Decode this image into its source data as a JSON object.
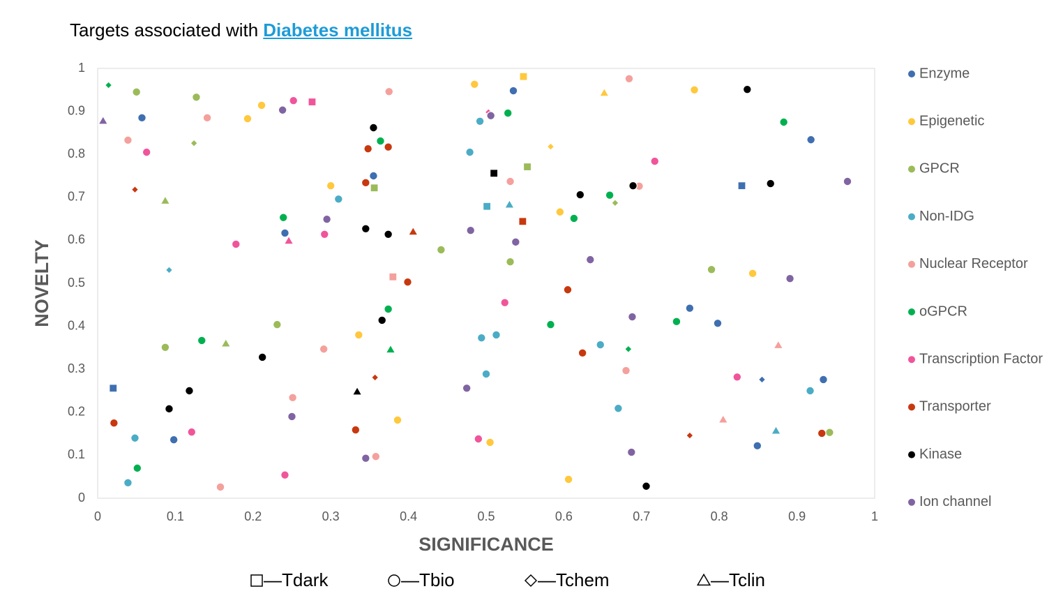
{
  "chart_data": {
    "type": "scatter",
    "title": "Targets associated with",
    "title_link": "Diabetes mellitus",
    "x_label": "SIGNIFICANCE",
    "y_label": "NOVELTY",
    "xlim": [
      0,
      1
    ],
    "ylim": [
      0,
      1
    ],
    "xticks": [
      0,
      0.1,
      0.2,
      0.3,
      0.4,
      0.5,
      0.6,
      0.7,
      0.8,
      0.9,
      1
    ],
    "yticks": [
      0,
      0.1,
      0.2,
      0.3,
      0.4,
      0.5,
      0.6,
      0.7,
      0.8,
      0.9,
      1
    ],
    "grid": false,
    "legend": "right",
    "series": [
      {
        "name": "Enzyme",
        "color": "#3f6fb0",
        "x": [
          0.057,
          0.535,
          0.355,
          0.241,
          0.918,
          0.829,
          0.762,
          0.798,
          0.02,
          0.098,
          0.855,
          0.934,
          0.849
        ],
        "y": [
          0.885,
          0.948,
          0.75,
          0.617,
          0.834,
          0.727,
          0.442,
          0.407,
          0.256,
          0.136,
          0.276,
          0.276,
          0.122
        ],
        "shapes": [
          "circle",
          "circle",
          "circle",
          "circle",
          "circle",
          "square",
          "circle",
          "circle",
          "square",
          "circle",
          "diamond",
          "circle",
          "circle"
        ]
      },
      {
        "name": "Epigenetic",
        "color": "#ffc83d",
        "x": [
          0.485,
          0.548,
          0.211,
          0.193,
          0.3,
          0.768,
          0.652,
          0.583,
          0.595,
          0.843,
          0.336,
          0.386,
          0.505,
          0.606
        ],
        "y": [
          0.963,
          0.981,
          0.914,
          0.883,
          0.727,
          0.95,
          0.943,
          0.818,
          0.666,
          0.523,
          0.38,
          0.182,
          0.13,
          0.044
        ],
        "shapes": [
          "circle",
          "square",
          "circle",
          "circle",
          "circle",
          "circle",
          "triangle",
          "diamond",
          "circle",
          "circle",
          "circle",
          "circle",
          "circle",
          "circle"
        ]
      },
      {
        "name": "GPCR",
        "color": "#9bbb59",
        "x": [
          0.05,
          0.127,
          0.124,
          0.087,
          0.356,
          0.553,
          0.666,
          0.442,
          0.531,
          0.79,
          0.231,
          0.087,
          0.165,
          0.942
        ],
        "y": [
          0.945,
          0.933,
          0.826,
          0.692,
          0.722,
          0.771,
          0.687,
          0.578,
          0.55,
          0.532,
          0.404,
          0.351,
          0.36,
          0.153
        ],
        "shapes": [
          "circle",
          "circle",
          "diamond",
          "triangle",
          "square",
          "square",
          "diamond",
          "circle",
          "circle",
          "circle",
          "circle",
          "circle",
          "triangle",
          "circle"
        ]
      },
      {
        "name": "Non-IDG",
        "color": "#4bacc6",
        "x": [
          0.492,
          0.479,
          0.31,
          0.501,
          0.53,
          0.092,
          0.647,
          0.513,
          0.494,
          0.5,
          0.67,
          0.917,
          0.873,
          0.048,
          0.039
        ],
        "y": [
          0.877,
          0.805,
          0.696,
          0.679,
          0.683,
          0.531,
          0.357,
          0.38,
          0.373,
          0.289,
          0.209,
          0.25,
          0.157,
          0.14,
          0.036
        ],
        "shapes": [
          "circle",
          "circle",
          "circle",
          "square",
          "triangle",
          "diamond",
          "circle",
          "circle",
          "circle",
          "circle",
          "circle",
          "circle",
          "triangle",
          "circle",
          "circle"
        ]
      },
      {
        "name": "Nuclear Receptor",
        "color": "#f4a09c",
        "x": [
          0.039,
          0.141,
          0.375,
          0.684,
          0.531,
          0.697,
          0.38,
          0.291,
          0.68,
          0.876,
          0.251,
          0.805,
          0.358,
          0.158
        ],
        "y": [
          0.833,
          0.885,
          0.946,
          0.976,
          0.737,
          0.726,
          0.515,
          0.347,
          0.297,
          0.356,
          0.234,
          0.183,
          0.097,
          0.026
        ],
        "shapes": [
          "circle",
          "circle",
          "circle",
          "circle",
          "circle",
          "circle",
          "square",
          "circle",
          "circle",
          "triangle",
          "circle",
          "triangle",
          "circle",
          "circle"
        ]
      },
      {
        "name": "oGPCR",
        "color": "#00b050",
        "x": [
          0.014,
          0.528,
          0.364,
          0.883,
          0.659,
          0.613,
          0.239,
          0.374,
          0.377,
          0.583,
          0.745,
          0.683,
          0.134,
          0.051
        ],
        "y": [
          0.961,
          0.896,
          0.831,
          0.875,
          0.705,
          0.651,
          0.653,
          0.44,
          0.346,
          0.404,
          0.411,
          0.347,
          0.367,
          0.07
        ],
        "shapes": [
          "diamond",
          "circle",
          "circle",
          "circle",
          "circle",
          "circle",
          "circle",
          "circle",
          "triangle",
          "circle",
          "circle",
          "diamond",
          "circle",
          "circle"
        ]
      },
      {
        "name": "Transcription Factor",
        "color": "#f0559b",
        "x": [
          0.252,
          0.276,
          0.503,
          0.063,
          0.717,
          0.246,
          0.178,
          0.292,
          0.524,
          0.823,
          0.121,
          0.49,
          0.241
        ],
        "y": [
          0.925,
          0.922,
          0.898,
          0.805,
          0.784,
          0.599,
          0.591,
          0.614,
          0.455,
          0.282,
          0.154,
          0.138,
          0.054
        ],
        "shapes": [
          "circle",
          "square",
          "diamond",
          "circle",
          "circle",
          "triangle",
          "circle",
          "circle",
          "circle",
          "circle",
          "circle",
          "circle",
          "circle"
        ]
      },
      {
        "name": "Transporter",
        "color": "#c8380f",
        "x": [
          0.048,
          0.348,
          0.374,
          0.345,
          0.547,
          0.406,
          0.399,
          0.605,
          0.624,
          0.357,
          0.021,
          0.332,
          0.762,
          0.932
        ],
        "y": [
          0.718,
          0.813,
          0.817,
          0.734,
          0.644,
          0.62,
          0.503,
          0.485,
          0.338,
          0.281,
          0.175,
          0.159,
          0.146,
          0.151
        ],
        "shapes": [
          "diamond",
          "circle",
          "circle",
          "circle",
          "square",
          "triangle",
          "circle",
          "circle",
          "circle",
          "diamond",
          "circle",
          "circle",
          "diamond",
          "circle"
        ]
      },
      {
        "name": "Kinase",
        "color": "#000000",
        "x": [
          0.355,
          0.51,
          0.345,
          0.374,
          0.621,
          0.689,
          0.836,
          0.866,
          0.366,
          0.212,
          0.118,
          0.092,
          0.334,
          0.706
        ],
        "y": [
          0.862,
          0.756,
          0.627,
          0.614,
          0.706,
          0.727,
          0.951,
          0.732,
          0.414,
          0.328,
          0.25,
          0.208,
          0.248,
          0.028
        ],
        "shapes": [
          "circle",
          "square",
          "circle",
          "circle",
          "circle",
          "circle",
          "circle",
          "circle",
          "circle",
          "circle",
          "circle",
          "circle",
          "triangle",
          "circle"
        ]
      },
      {
        "name": "Ion channel",
        "color": "#8064a2",
        "x": [
          0.007,
          0.238,
          0.506,
          0.295,
          0.48,
          0.538,
          0.634,
          0.965,
          0.891,
          0.688,
          0.475,
          0.25,
          0.687,
          0.345
        ],
        "y": [
          0.878,
          0.903,
          0.89,
          0.649,
          0.623,
          0.596,
          0.555,
          0.737,
          0.511,
          0.422,
          0.256,
          0.19,
          0.107,
          0.093
        ],
        "shapes": [
          "triangle",
          "circle",
          "circle",
          "circle",
          "circle",
          "circle",
          "circle",
          "circle",
          "circle",
          "circle",
          "circle",
          "circle",
          "circle",
          "circle"
        ]
      }
    ],
    "shape_legend": [
      {
        "label": "—Tdark",
        "shape": "square"
      },
      {
        "label": "—Tbio",
        "shape": "circle"
      },
      {
        "label": "—Tchem",
        "shape": "diamond"
      },
      {
        "label": "—Tclin",
        "shape": "triangle"
      }
    ]
  }
}
